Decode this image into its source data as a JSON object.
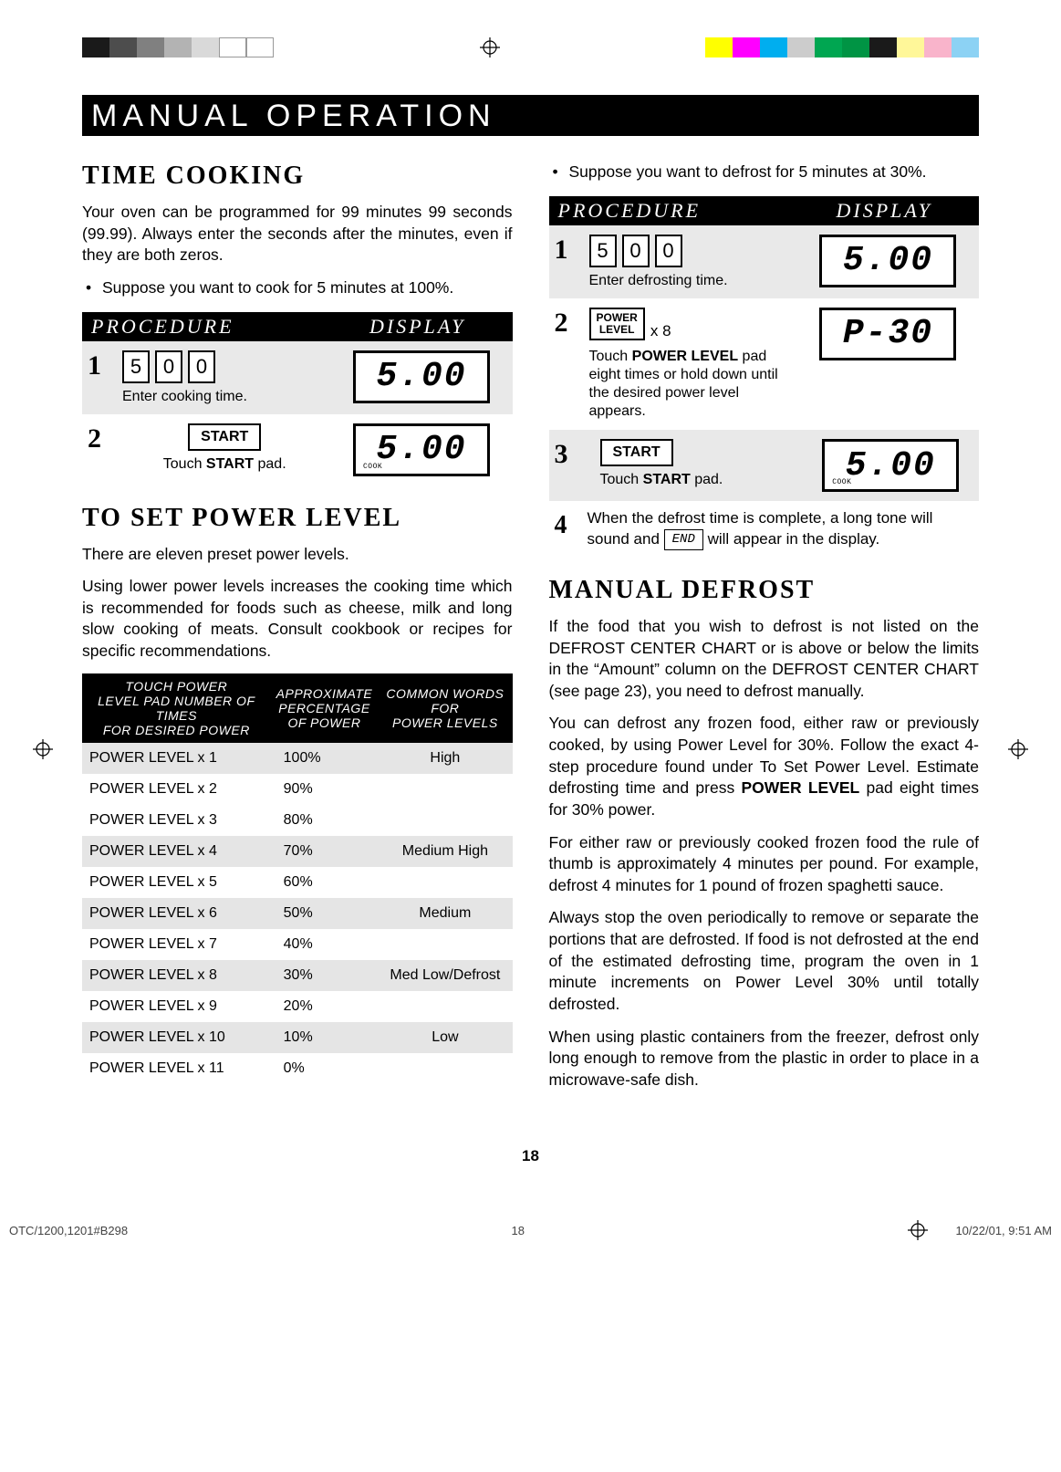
{
  "colorbars": {
    "left": [
      "#1a1a1a",
      "#4d4d4d",
      "#808080",
      "#b3b3b3",
      "#d9d9d9",
      "#ffffff",
      "#ffffff"
    ],
    "right": [
      "#ffff00",
      "#ff00ff",
      "#00aeef",
      "#cccccc",
      "#00a651",
      "#009444",
      "#1a1a1a",
      "#fff799",
      "#f9b4cb",
      "#8cd2f4"
    ]
  },
  "title": "MANUAL OPERATION",
  "left": {
    "h_time": "TIME COOKING",
    "p1": "Your oven can be programmed for 99 minutes 99 seconds (99.99). Always enter the seconds after the minutes, even if they are both zeros.",
    "bullet1": "Suppose you want to cook for 5 minutes at 100%.",
    "procHeader": {
      "l": "PROCEDURE",
      "r": "DISPLAY"
    },
    "step1": {
      "digits": [
        "5",
        "0",
        "0"
      ],
      "caption": "Enter cooking time.",
      "lcd": "5.00"
    },
    "step2": {
      "btn": "START",
      "caption_pre": "Touch ",
      "caption_bold": "START",
      "caption_post": " pad.",
      "lcd": "5.00",
      "lcd_sub": "COOK"
    },
    "h_power": "TO SET POWER LEVEL",
    "p2": "There are eleven preset power levels.",
    "p3": "Using lower power levels increases the cooking time which is recommended for foods such as cheese, milk and long slow cooking of meats. Consult cookbook or recipes for specific recommendations.",
    "table": {
      "headers": [
        "TOUCH POWER\nLEVEL PAD NUMBER OF TIMES\nFOR DESIRED POWER",
        "APPROXIMATE\nPERCENTAGE\nOF POWER",
        "COMMON WORDS\nFOR\nPOWER LEVELS"
      ],
      "rows": [
        {
          "c1": "POWER LEVEL x 1",
          "c2": "100%",
          "c3": "High",
          "shade": true
        },
        {
          "c1": "POWER LEVEL x 2",
          "c2": "90%",
          "c3": "",
          "shade": false
        },
        {
          "c1": "POWER LEVEL x 3",
          "c2": "80%",
          "c3": "",
          "shade": false
        },
        {
          "c1": "POWER LEVEL x 4",
          "c2": "70%",
          "c3": "Medium High",
          "shade": true
        },
        {
          "c1": "POWER LEVEL x 5",
          "c2": "60%",
          "c3": "",
          "shade": false
        },
        {
          "c1": "POWER LEVEL x 6",
          "c2": "50%",
          "c3": "Medium",
          "shade": true
        },
        {
          "c1": "POWER LEVEL x 7",
          "c2": "40%",
          "c3": "",
          "shade": false
        },
        {
          "c1": "POWER LEVEL x 8",
          "c2": "30%",
          "c3": "Med Low/Defrost",
          "shade": true
        },
        {
          "c1": "POWER LEVEL x 9",
          "c2": "20%",
          "c3": "",
          "shade": false
        },
        {
          "c1": "POWER LEVEL x 10",
          "c2": "10%",
          "c3": "Low",
          "shade": true
        },
        {
          "c1": "POWER LEVEL x 11",
          "c2": "0%",
          "c3": "",
          "shade": false
        }
      ]
    }
  },
  "right": {
    "bullet1": "Suppose you want to defrost for 5 minutes at 30%.",
    "procHeader": {
      "l": "PROCEDURE",
      "r": "DISPLAY"
    },
    "step1": {
      "digits": [
        "5",
        "0",
        "0"
      ],
      "caption": "Enter defrosting time.",
      "lcd": "5.00"
    },
    "step2": {
      "btn_l1": "POWER",
      "btn_l2": "LEVEL",
      "x8": "x 8",
      "note_pre": "Touch ",
      "note_bold": "POWER LEVEL",
      "note_post": " pad eight times or hold down until the desired power level appears.",
      "lcd": "P-30"
    },
    "step3": {
      "btn": "START",
      "caption_pre": "Touch ",
      "caption_bold": "START",
      "caption_post": " pad.",
      "lcd": "5.00",
      "lcd_sub": "COOK"
    },
    "step4_pre": "When the defrost time is complete, a long tone will sound and ",
    "step4_end": "END",
    "step4_post": " will appear in the display.",
    "h_defrost": "MANUAL DEFROST",
    "p1": "If the food that you wish to defrost is not listed on the DEFROST CENTER CHART or is above or below the limits in the “Amount” column on the DEFROST CENTER CHART (see page 23), you need to defrost manually.",
    "p2_pre": "You can defrost any frozen food, either raw or previously cooked, by using Power Level for 30%. Follow the exact 4-step procedure found under To Set Power Level. Estimate defrosting time and press ",
    "p2_bold": "POWER LEVEL",
    "p2_post": " pad eight times for 30% power.",
    "p3": "For either raw or previously cooked frozen food the rule of thumb is approximately 4 minutes per pound. For example, defrost 4 minutes for 1 pound of frozen spaghetti sauce.",
    "p4": "Always stop the oven periodically to remove or separate the portions that are defrosted. If food is not defrosted at the end of the estimated defrosting time, program the oven in 1 minute increments on Power Level 30% until totally defrosted.",
    "p5": "When using plastic containers from the freezer, defrost only long enough to remove from the plastic in order to place in a microwave-safe dish."
  },
  "pageNum": "18",
  "footer": {
    "l": "OTC/1200,1201#B298",
    "c": "18",
    "r": "10/22/01, 9:51 AM"
  }
}
